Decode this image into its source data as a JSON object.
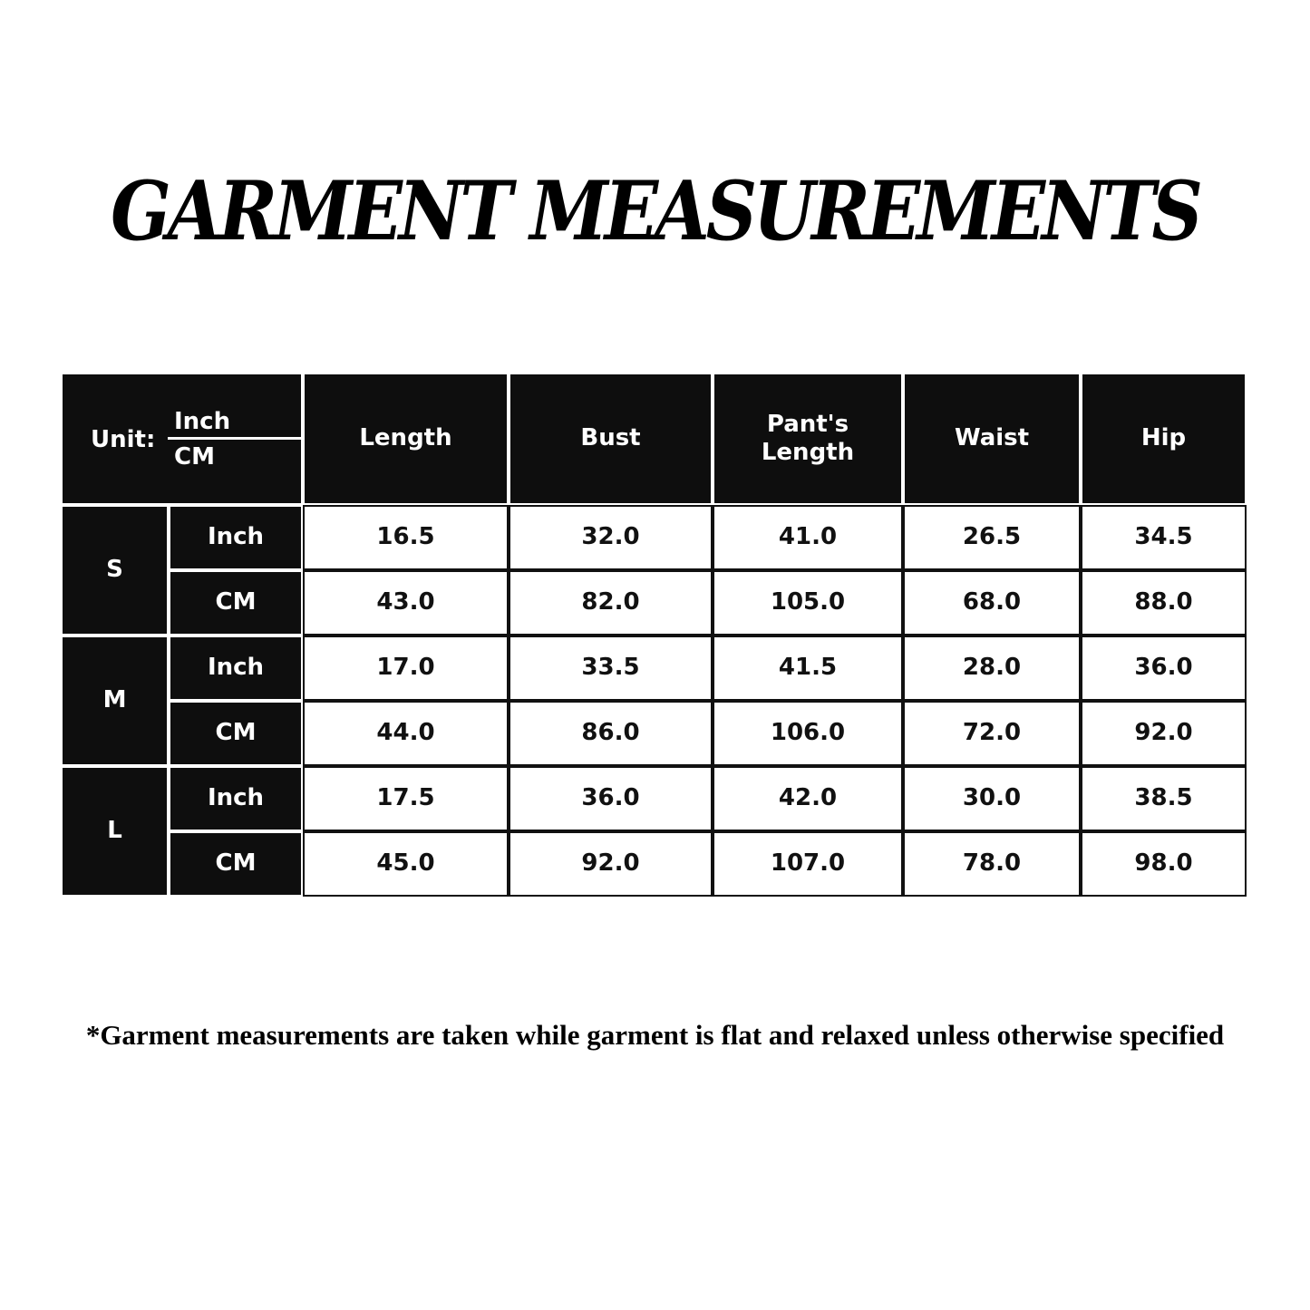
{
  "title": "GARMENT MEASUREMENTS",
  "table": {
    "unit_label": "Unit:",
    "unit_top": "Inch",
    "unit_bottom": "CM",
    "columns": [
      "Length",
      "Bust",
      "Pant's\nLength",
      "Waist",
      "Hip"
    ],
    "sizes": [
      {
        "size": "S",
        "rows": [
          {
            "unit": "Inch",
            "values": [
              "16.5",
              "32.0",
              "41.0",
              "26.5",
              "34.5"
            ]
          },
          {
            "unit": "CM",
            "values": [
              "43.0",
              "82.0",
              "105.0",
              "68.0",
              "88.0"
            ]
          }
        ]
      },
      {
        "size": "M",
        "rows": [
          {
            "unit": "Inch",
            "values": [
              "17.0",
              "33.5",
              "41.5",
              "28.0",
              "36.0"
            ]
          },
          {
            "unit": "CM",
            "values": [
              "44.0",
              "86.0",
              "106.0",
              "72.0",
              "92.0"
            ]
          }
        ]
      },
      {
        "size": "L",
        "rows": [
          {
            "unit": "Inch",
            "values": [
              "17.5",
              "36.0",
              "42.0",
              "30.0",
              "38.5"
            ]
          },
          {
            "unit": "CM",
            "values": [
              "45.0",
              "92.0",
              "107.0",
              "78.0",
              "98.0"
            ]
          }
        ]
      }
    ]
  },
  "colors": {
    "header_bg": "#0e0e0e",
    "header_text": "#ffffff",
    "cell_bg": "#ffffff",
    "cell_text": "#111111"
  },
  "footnote": "*Garment measurements are taken while garment is flat and relaxed unless otherwise specified"
}
